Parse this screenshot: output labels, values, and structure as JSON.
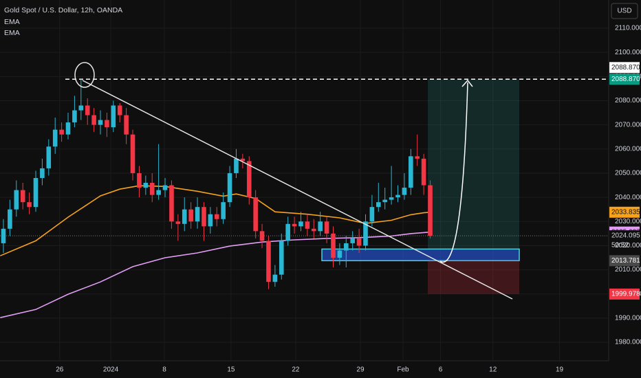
{
  "chart_data": {
    "type": "candlestick",
    "title": "Gold Spot / U.S. Dollar, 12h, OANDA",
    "currency": "USD",
    "up_color": "#2ab7d3",
    "down_color": "#f23645",
    "open": [
      2021,
      2027,
      2035,
      2043,
      2038,
      2036,
      2048,
      2052,
      2061,
      2068,
      2066,
      2071,
      2076,
      2078,
      2074,
      2070,
      2072,
      2069,
      2078,
      2074,
      2066,
      2050,
      2044,
      2046,
      2041,
      2043,
      2045,
      2030,
      2029,
      2035,
      2030,
      2036,
      2028,
      2033,
      2031,
      2038,
      2050,
      2056,
      2055,
      2040,
      2026,
      2022,
      2005,
      2008,
      2022,
      2029,
      2028,
      2030,
      2027,
      2026,
      2030,
      2025,
      2015,
      2018,
      2021,
      2023,
      2020,
      2030,
      2036,
      2038,
      2039,
      2040,
      2041,
      2044,
      2057,
      2056,
      2045
    ],
    "high": [
      2031,
      2039,
      2047,
      2046,
      2042,
      2051,
      2056,
      2064,
      2073,
      2071,
      2075,
      2082,
      2088.87,
      2081,
      2077,
      2076,
      2075,
      2080,
      2079,
      2077,
      2068,
      2053,
      2049,
      2050,
      2062,
      2048,
      2047,
      2033,
      2040,
      2038,
      2040,
      2038,
      2036,
      2036,
      2042,
      2053,
      2060,
      2058,
      2057,
      2043,
      2029,
      2024,
      2012,
      2025,
      2032,
      2032,
      2034,
      2033,
      2031,
      2034,
      2032,
      2028,
      2021,
      2024,
      2026,
      2027,
      2033,
      2041,
      2046,
      2044,
      2053,
      2045,
      2050,
      2060,
      2066,
      2058,
      2047
    ],
    "low": [
      2017,
      2024,
      2032,
      2035,
      2033,
      2034,
      2045,
      2049,
      2058,
      2063,
      2064,
      2069,
      2072,
      2070,
      2067,
      2066,
      2065,
      2067,
      2071,
      2062,
      2047,
      2040,
      2041,
      2038,
      2039,
      2040,
      2027,
      2022,
      2026,
      2027,
      2027,
      2022,
      2025,
      2028,
      2029,
      2036,
      2048,
      2052,
      2037,
      2023,
      2019,
      2002,
      2003,
      2006,
      2020,
      2025,
      2026,
      2024,
      2023,
      2024,
      2021,
      2011,
      2012,
      2011,
      2018,
      2017,
      2018,
      2028,
      2034,
      2035,
      2037,
      2038,
      2039,
      2041,
      2053,
      2041,
      2023
    ],
    "close": [
      2027,
      2035,
      2043,
      2038,
      2036,
      2048,
      2052,
      2061,
      2068,
      2066,
      2071,
      2076,
      2078,
      2074,
      2070,
      2072,
      2069,
      2078,
      2074,
      2066,
      2050,
      2044,
      2046,
      2041,
      2043,
      2045,
      2030,
      2029,
      2035,
      2030,
      2036,
      2028,
      2033,
      2031,
      2038,
      2050,
      2056,
      2055,
      2040,
      2026,
      2022,
      2005,
      2008,
      2022,
      2029,
      2028,
      2030,
      2027,
      2026,
      2030,
      2025,
      2015,
      2018,
      2021,
      2023,
      2020,
      2030,
      2036,
      2038,
      2039,
      2040,
      2041,
      2044,
      2057,
      2056,
      2045,
      2024.095
    ],
    "countdown": "50:52",
    "series": [
      {
        "name": "EMA",
        "color": "#f7a21b",
        "last": 2033.835,
        "x": [
          -0.5,
          5,
          10,
          15,
          18,
          21,
          25,
          30,
          34,
          36,
          39,
          42,
          47,
          52,
          56,
          60,
          63,
          65,
          66
        ],
        "values": [
          2015.8,
          2022,
          2031.8,
          2040.6,
          2043.4,
          2044.8,
          2044.5,
          2042.5,
          2040.5,
          2041.4,
          2039.5,
          2034,
          2033,
          2031.5,
          2029.2,
          2030.5,
          2032.8,
          2033.6,
          2033.835
        ]
      },
      {
        "name": "EMA",
        "color": "#e39ff6",
        "last": 2025.627,
        "x": [
          -0.5,
          5,
          10,
          15,
          20,
          25,
          30,
          35,
          40,
          45,
          50,
          55,
          60,
          63,
          66
        ],
        "values": [
          1990.2,
          1993.6,
          1999.9,
          2005,
          2011.3,
          2015,
          2017,
          2019.8,
          2021.5,
          2022.4,
          2023,
          2023.3,
          2024,
          2025,
          2025.627
        ]
      }
    ],
    "levels": {
      "target": {
        "value": 2088.87,
        "label": "2088.870"
      },
      "entry": 2013.781,
      "stop": 1999.978,
      "zone_top": 2018.6
    },
    "xlim": [
      -0.53,
      93.6
    ],
    "xticks": [
      {
        "value": 8.7,
        "label": "26"
      },
      {
        "value": 16.6,
        "label": "2024"
      },
      {
        "value": 24.9,
        "label": "8"
      },
      {
        "value": 35.2,
        "label": "15"
      },
      {
        "value": 45.2,
        "label": "22"
      },
      {
        "value": 55.2,
        "label": "29"
      },
      {
        "value": 61.8,
        "label": "Feb"
      },
      {
        "value": 67.6,
        "label": "6"
      },
      {
        "value": 75.7,
        "label": "12"
      },
      {
        "value": 86,
        "label": "19"
      }
    ],
    "ylim": [
      1973.2,
      2121.66
    ],
    "yticks": [
      {
        "value": 1980,
        "label": "1980.000"
      },
      {
        "value": 1990,
        "label": "1990.000"
      },
      {
        "value": 2000,
        "label": "2000.000"
      },
      {
        "value": 2010,
        "label": "2010.000"
      },
      {
        "value": 2020,
        "label": "2020.000"
      },
      {
        "value": 2030,
        "label": "2030.000"
      },
      {
        "value": 2040,
        "label": "2040.000"
      },
      {
        "value": 2050,
        "label": "2050.000"
      },
      {
        "value": 2060,
        "label": "2060.000"
      },
      {
        "value": 2070,
        "label": "2070.000"
      },
      {
        "value": 2080,
        "label": "2080.000"
      },
      {
        "value": 2090,
        "label": "2090.000"
      },
      {
        "value": 2100,
        "label": "2100.000"
      },
      {
        "value": 2110,
        "label": "2110.000"
      }
    ],
    "grid": true
  }
}
